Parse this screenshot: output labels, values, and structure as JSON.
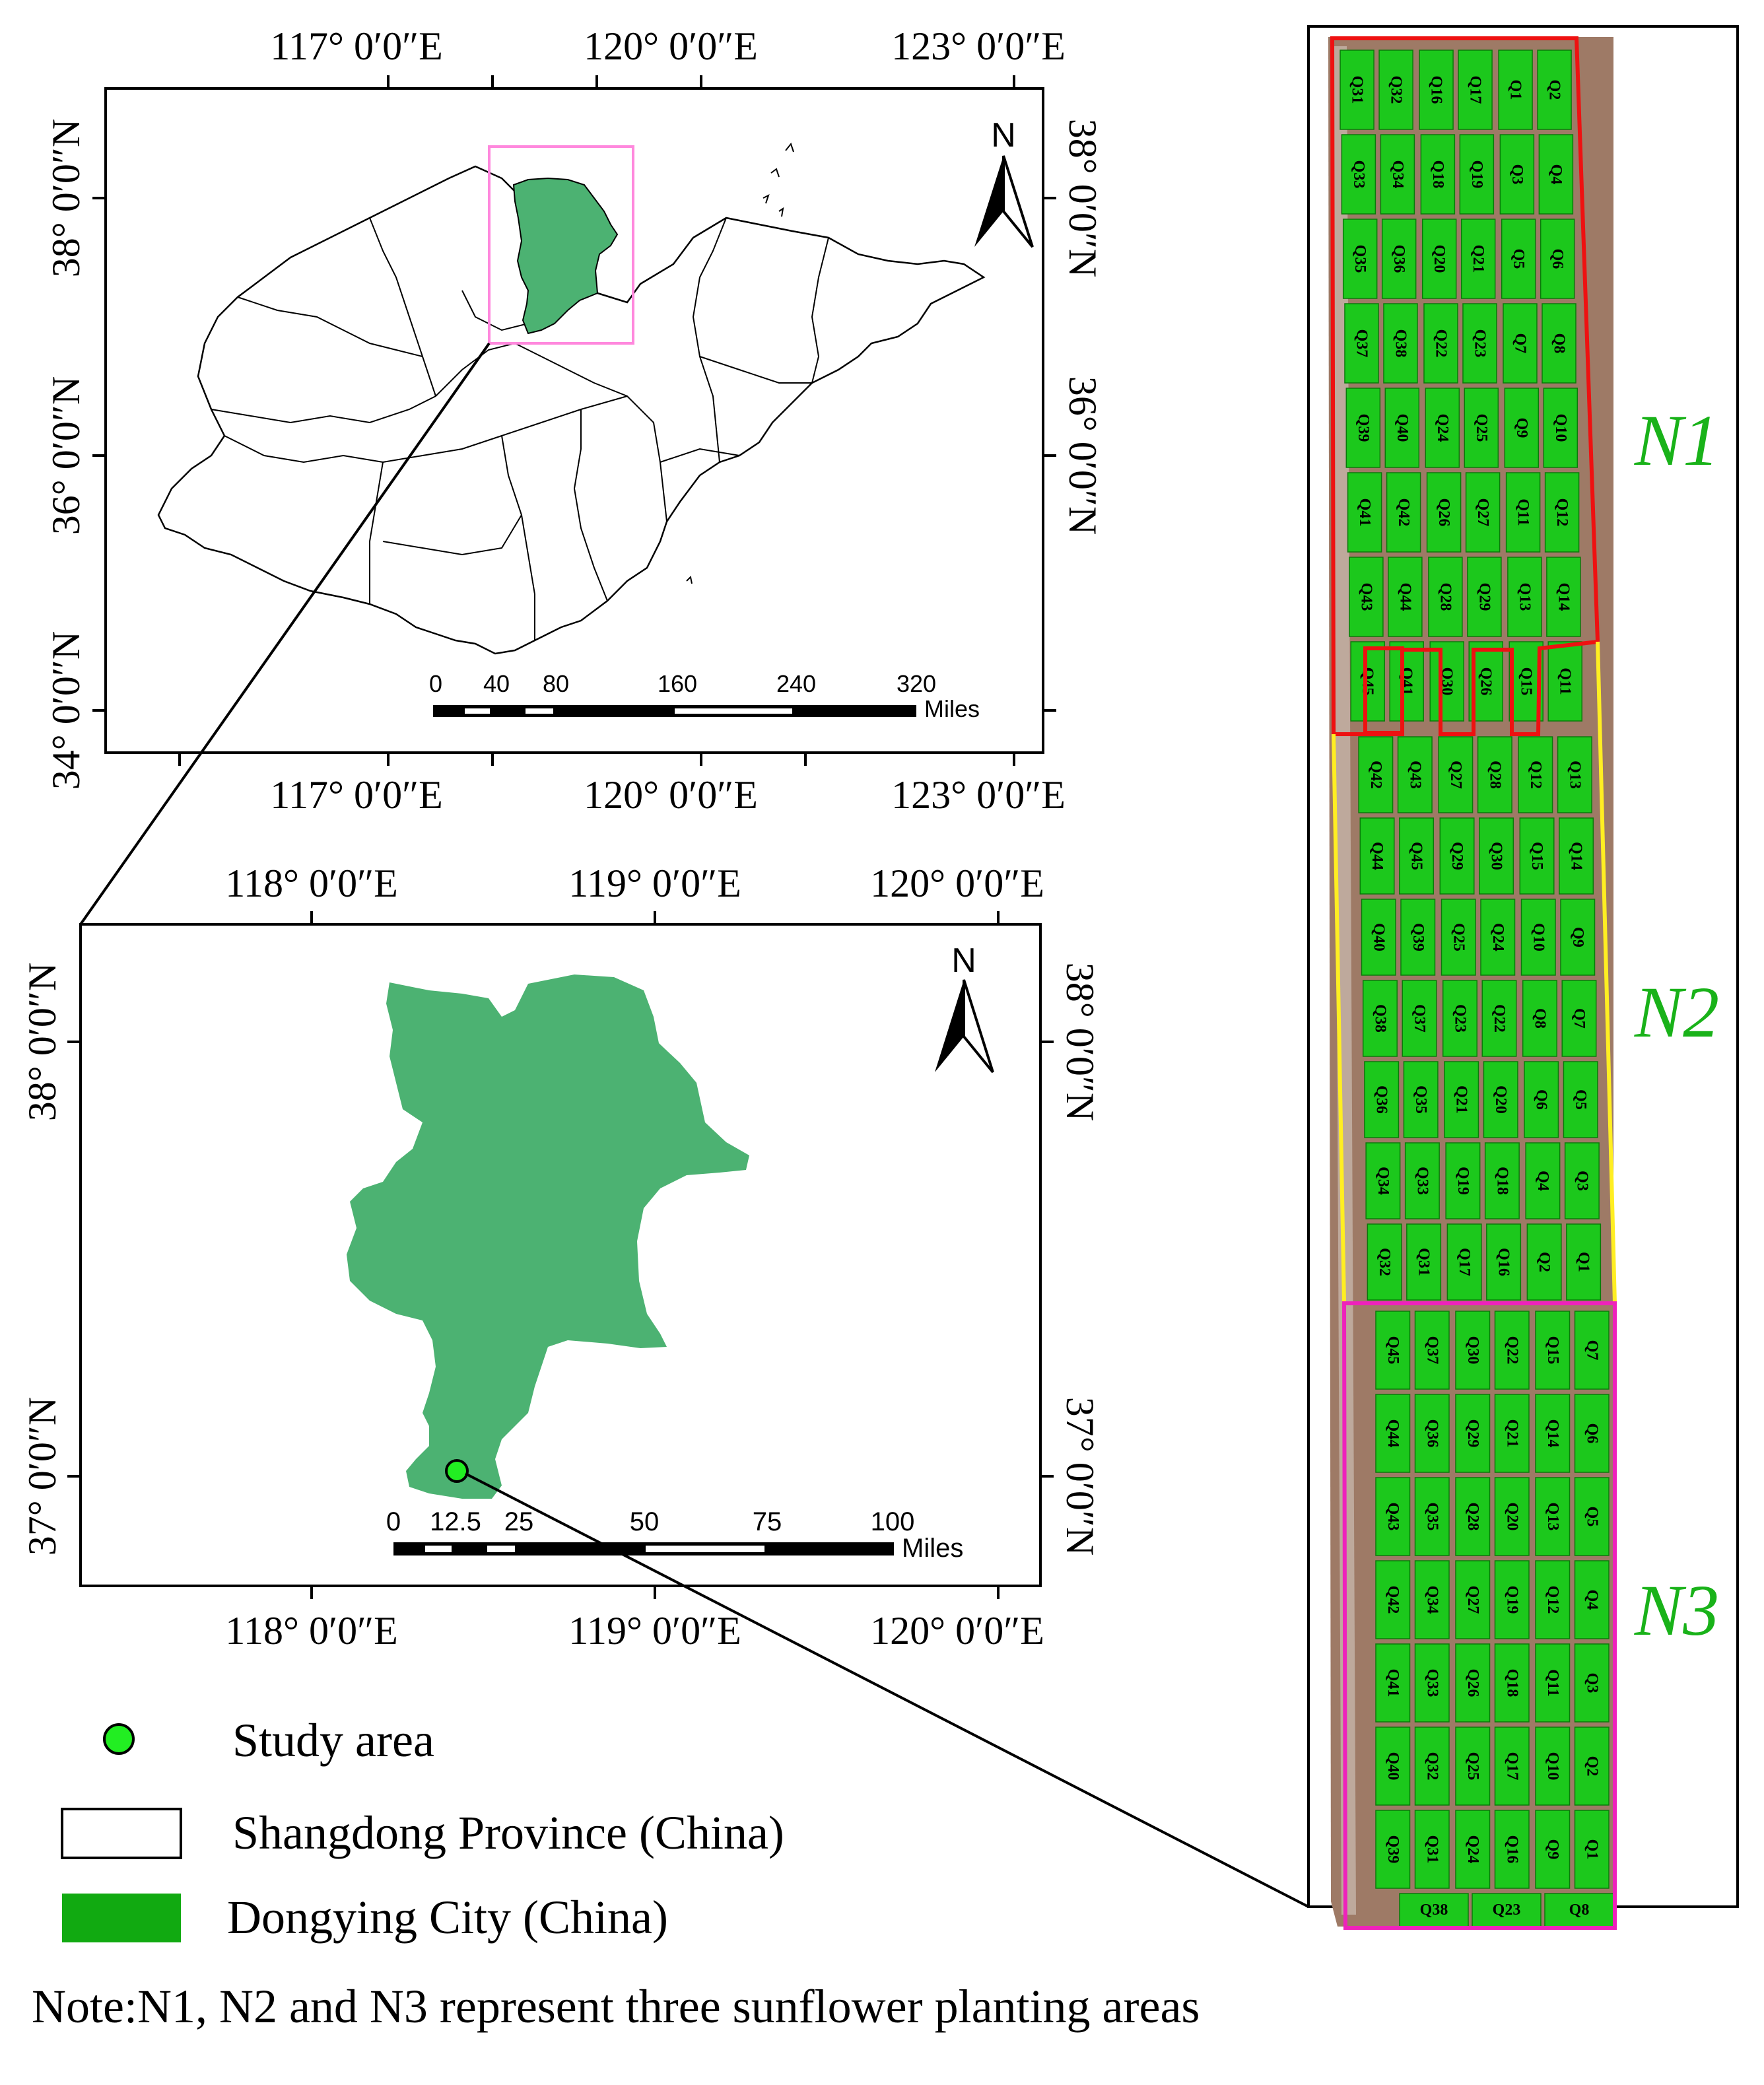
{
  "colors": {
    "dongying_fill": "#4cb272",
    "inset_box": "#ff88dd",
    "plot_fill": "#1cc81c",
    "field_bg": "#9e7a66",
    "n1_boundary": "#ee1111",
    "n2_boundary": "#ffee22",
    "n3_boundary": "#ee22bb",
    "zone_label": "#19b219",
    "study_marker": "#22ee22",
    "legend_green": "#11aa11"
  },
  "map_top": {
    "lon_labels": [
      "117°  0′0″E",
      "120°  0′0″E",
      "123°  0′0″E"
    ],
    "lat_labels": [
      "34°  0′0″N",
      "36°  0′0″N",
      "38°  0′0″N"
    ],
    "north": "N",
    "scale_ticks": [
      "0",
      "40",
      "80",
      "160",
      "240",
      "320"
    ],
    "scale_unit": "Miles"
  },
  "map_bottom": {
    "lon_labels": [
      "118°  0′0″E",
      "119°  0′0″E",
      "120°  0′0″E"
    ],
    "lat_labels": [
      "37°  0′0″N",
      "38°  0′0″N"
    ],
    "north": "N",
    "scale_ticks": [
      "0",
      "12.5",
      "25",
      "50",
      "75",
      "100"
    ],
    "scale_unit": "Miles"
  },
  "field": {
    "zones": [
      "N1",
      "N2",
      "N3"
    ],
    "n1": [
      [
        "Q31",
        "Q32",
        "Q16",
        "Q17",
        "Q1",
        "Q2"
      ],
      [
        "Q33",
        "Q34",
        "Q18",
        "Q19",
        "Q3",
        "Q4"
      ],
      [
        "Q35",
        "Q36",
        "Q20",
        "Q21",
        "Q5",
        "Q6"
      ],
      [
        "Q37",
        "Q38",
        "Q22",
        "Q23",
        "Q7",
        "Q8"
      ],
      [
        "Q39",
        "Q40",
        "Q24",
        "Q25",
        "Q9",
        "Q10"
      ],
      [
        "Q41",
        "Q42",
        "Q26",
        "Q27",
        "Q11",
        "Q12"
      ],
      [
        "Q43",
        "Q44",
        "Q28",
        "Q29",
        "Q13",
        "Q14"
      ],
      [
        "Q45",
        "Q41",
        "Q30",
        "Q26",
        "Q15",
        "Q11"
      ]
    ],
    "n2": [
      [
        "Q42",
        "Q43",
        "Q27",
        "Q28",
        "Q12",
        "Q13"
      ],
      [
        "Q44",
        "Q45",
        "Q29",
        "Q30",
        "Q15",
        "Q14"
      ],
      [
        "Q40",
        "Q39",
        "Q25",
        "Q24",
        "Q10",
        "Q9"
      ],
      [
        "Q38",
        "Q37",
        "Q23",
        "Q22",
        "Q8",
        "Q7"
      ],
      [
        "Q36",
        "Q35",
        "Q21",
        "Q20",
        "Q6",
        "Q5"
      ],
      [
        "Q34",
        "Q33",
        "Q19",
        "Q18",
        "Q4",
        "Q3"
      ],
      [
        "Q32",
        "Q31",
        "Q17",
        "Q16",
        "Q2",
        "Q1"
      ]
    ],
    "n3": [
      [
        "Q45",
        "Q37",
        "Q30",
        "Q22",
        "Q15",
        "Q7"
      ],
      [
        "Q44",
        "Q36",
        "Q29",
        "Q21",
        "Q14",
        "Q6"
      ],
      [
        "Q43",
        "Q35",
        "Q28",
        "Q20",
        "Q13",
        "Q5"
      ],
      [
        "Q42",
        "Q34",
        "Q27",
        "Q19",
        "Q12",
        "Q4"
      ],
      [
        "Q41",
        "Q33",
        "Q26",
        "Q18",
        "Q11",
        "Q3"
      ],
      [
        "Q40",
        "Q32",
        "Q25",
        "Q17",
        "Q10",
        "Q2"
      ],
      [
        "Q39",
        "Q31",
        "Q24",
        "Q16",
        "Q9",
        "Q1"
      ]
    ],
    "n3_bottom": [
      "Q38",
      "Q23",
      "Q8"
    ]
  },
  "legend": {
    "study_area": "Study area",
    "province": "Shangdong Province (China)",
    "city": "Dongying City (China)"
  },
  "note": "Note:N1, N2 and N3 represent three sunflower planting areas"
}
